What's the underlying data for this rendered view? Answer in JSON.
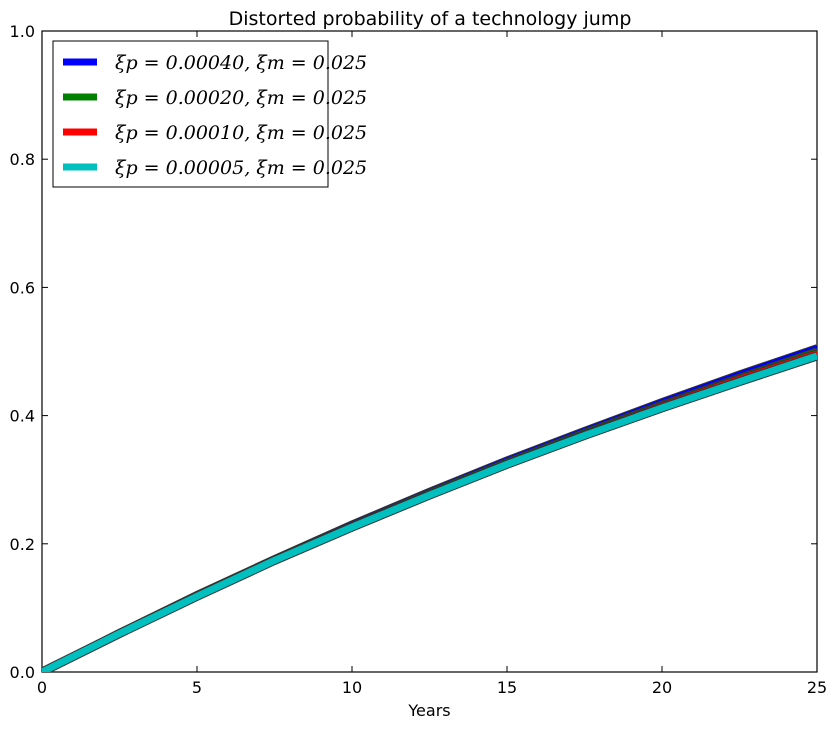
{
  "chart_data": {
    "type": "line",
    "title": "Distorted probability of a technology jump",
    "xlabel": "Years",
    "ylabel": "",
    "xlim": [
      0,
      25
    ],
    "ylim": [
      0,
      1.0
    ],
    "xticks": [
      0,
      5,
      10,
      15,
      20,
      25
    ],
    "yticks": [
      0.0,
      0.2,
      0.4,
      0.6,
      0.8,
      1.0
    ],
    "xtick_labels": [
      "0",
      "5",
      "10",
      "15",
      "20",
      "25"
    ],
    "ytick_labels": [
      "0.0",
      "0.2",
      "0.4",
      "0.6",
      "0.8",
      "1.0"
    ],
    "grid": false,
    "legend_position": "top-left",
    "x": [
      0,
      2.5,
      5,
      7.5,
      10,
      12.5,
      15,
      17.5,
      20,
      22.5,
      25
    ],
    "series": [
      {
        "name": "ξp = 0.00040, ξm = 0.025",
        "color": "#0000ff",
        "values": [
          0.0,
          0.062,
          0.121,
          0.177,
          0.231,
          0.282,
          0.331,
          0.377,
          0.422,
          0.465,
          0.506
        ]
      },
      {
        "name": "ξp = 0.00020, ξm = 0.025",
        "color": "#008000",
        "values": [
          0.0,
          0.061,
          0.12,
          0.176,
          0.229,
          0.28,
          0.328,
          0.374,
          0.418,
          0.46,
          0.501
        ]
      },
      {
        "name": "ξp = 0.00010, ξm = 0.025",
        "color": "#ff0000",
        "values": [
          0.0,
          0.061,
          0.119,
          0.175,
          0.228,
          0.278,
          0.326,
          0.372,
          0.416,
          0.458,
          0.498
        ]
      },
      {
        "name": "ξp = 0.00005, ξm = 0.025",
        "color": "#00bfbf",
        "values": [
          0.0,
          0.06,
          0.118,
          0.174,
          0.226,
          0.276,
          0.324,
          0.369,
          0.412,
          0.453,
          0.493
        ]
      }
    ]
  }
}
